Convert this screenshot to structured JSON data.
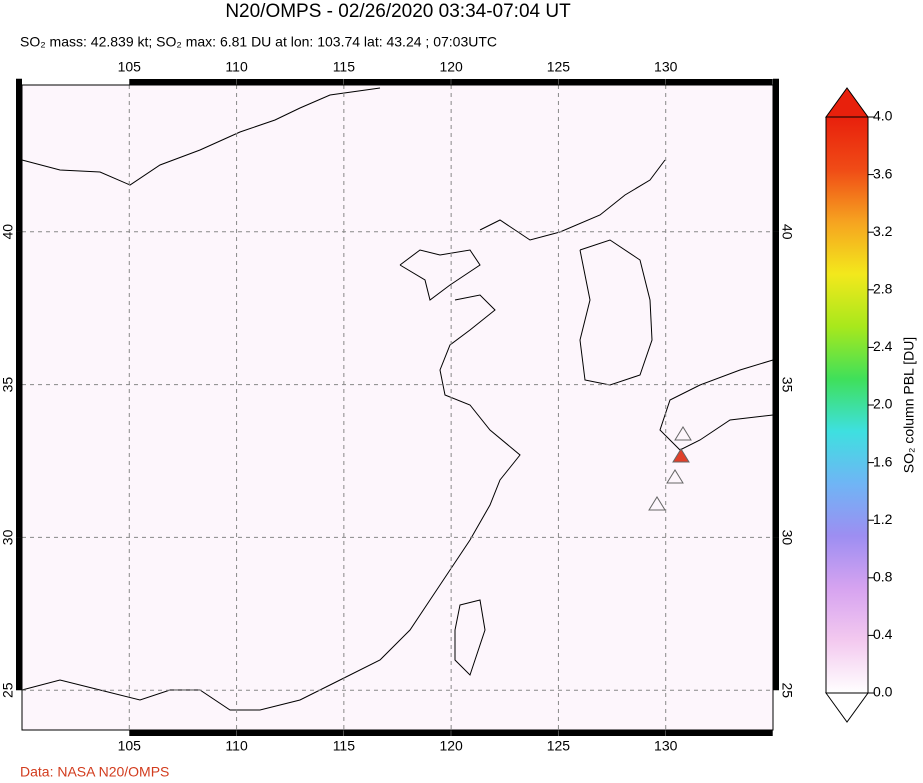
{
  "chart_data": {
    "type": "map",
    "title": "N20/OMPS - 02/26/2020 03:34-07:04 UT",
    "subtitle": "SO₂ mass: 42.839 kt; SO₂ max: 6.81 DU at lon: 103.74 lat: 43.24 ; 07:03UTC",
    "credit": "Data: NASA N20/OMPS",
    "xlim": [
      100,
      135
    ],
    "ylim": [
      23.7,
      44.8
    ],
    "xticks": [
      105,
      110,
      115,
      120,
      125,
      130
    ],
    "yticks": [
      25,
      30,
      35,
      40
    ],
    "grid": true,
    "colorbar": {
      "label": "SO₂ column PBL [DU]",
      "clim": [
        0,
        4
      ],
      "colors": [
        "#ffffff",
        "#f3c9ef",
        "#d6a3f0",
        "#9d8ef2",
        "#6fb5f5",
        "#3ee0e0",
        "#3fe05a",
        "#a8e81c",
        "#f3e81c",
        "#f6a320",
        "#f04b16",
        "#e8200c"
      ],
      "ticks": [
        {
          "value": 0,
          "label": "0.0"
        },
        {
          "value": 0.4,
          "label": "0.4"
        },
        {
          "value": 0.8,
          "label": "0.8"
        },
        {
          "value": 1.2,
          "label": "1.2"
        },
        {
          "value": 1.6,
          "label": "1.6"
        },
        {
          "value": 2.0,
          "label": "2.0"
        },
        {
          "value": 2.4,
          "label": "2.4"
        },
        {
          "value": 2.8,
          "label": "2.8"
        },
        {
          "value": 3.2,
          "label": "3.2"
        },
        {
          "value": 3.6,
          "label": "3.6"
        },
        {
          "value": 4.0,
          "label": "4.0"
        }
      ]
    }
  }
}
